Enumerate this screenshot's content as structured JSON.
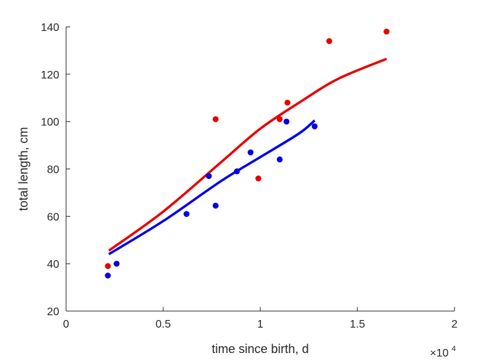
{
  "chart_data": {
    "type": "scatter",
    "title": "",
    "xlabel": "time since birth, d",
    "ylabel": "total length, cm",
    "x_exponent_label": "×10",
    "x_exponent_power": "4",
    "xlim": [
      0,
      2
    ],
    "ylim": [
      20,
      140
    ],
    "x_scale_note": "x values shown in units of 10^4 days",
    "xticks": [
      "0",
      "0.5",
      "1",
      "1.5",
      "2"
    ],
    "yticks": [
      "20",
      "40",
      "60",
      "80",
      "100",
      "120",
      "140"
    ],
    "grid": false,
    "series": [
      {
        "color": "#e60000",
        "points": [
          {
            "x": 0.215,
            "y": 39
          },
          {
            "x": 0.77,
            "y": 101
          },
          {
            "x": 0.99,
            "y": 76
          },
          {
            "x": 1.1,
            "y": 101
          },
          {
            "x": 1.14,
            "y": 108
          },
          {
            "x": 1.355,
            "y": 134
          },
          {
            "x": 1.65,
            "y": 138
          }
        ],
        "fit": [
          {
            "x": 0.22,
            "y": 45.5
          },
          {
            "x": 0.5,
            "y": 62
          },
          {
            "x": 0.8,
            "y": 83
          },
          {
            "x": 1.0,
            "y": 97
          },
          {
            "x": 1.2,
            "y": 108
          },
          {
            "x": 1.4,
            "y": 118
          },
          {
            "x": 1.65,
            "y": 126.5
          }
        ]
      },
      {
        "color": "#0000e6",
        "points": [
          {
            "x": 0.215,
            "y": 35
          },
          {
            "x": 0.26,
            "y": 40
          },
          {
            "x": 0.62,
            "y": 61
          },
          {
            "x": 0.735,
            "y": 77
          },
          {
            "x": 0.77,
            "y": 64.5
          },
          {
            "x": 0.88,
            "y": 79
          },
          {
            "x": 0.95,
            "y": 87
          },
          {
            "x": 1.1,
            "y": 84
          },
          {
            "x": 1.135,
            "y": 100
          },
          {
            "x": 1.28,
            "y": 98
          }
        ],
        "fit": [
          {
            "x": 0.22,
            "y": 44
          },
          {
            "x": 0.5,
            "y": 58
          },
          {
            "x": 0.8,
            "y": 75
          },
          {
            "x": 1.0,
            "y": 85
          },
          {
            "x": 1.2,
            "y": 95
          },
          {
            "x": 1.28,
            "y": 100.5
          }
        ]
      }
    ]
  }
}
